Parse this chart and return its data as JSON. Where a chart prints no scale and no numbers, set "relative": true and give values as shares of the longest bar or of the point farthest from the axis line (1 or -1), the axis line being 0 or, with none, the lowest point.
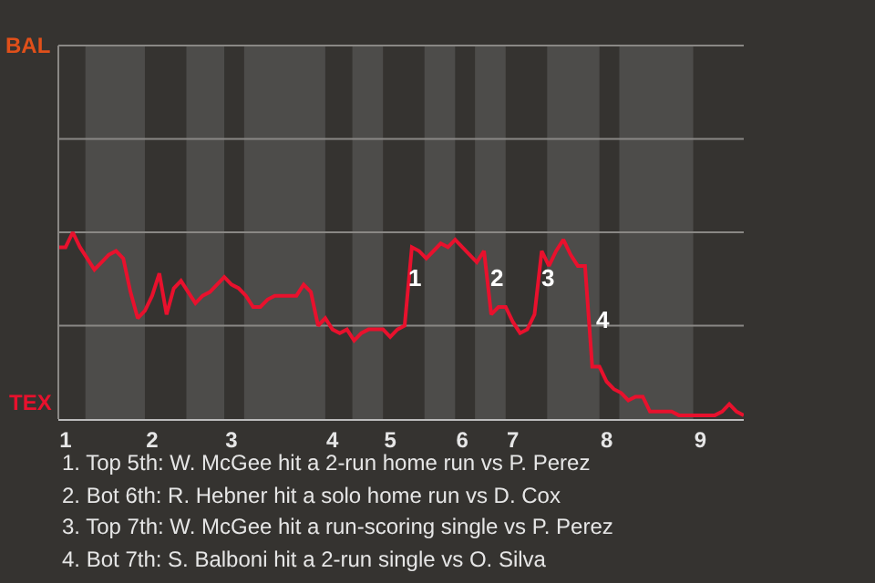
{
  "chart_data": {
    "type": "line",
    "relative": true,
    "categories": [
      null,
      "1",
      null,
      null,
      null,
      null,
      null,
      null,
      null,
      null,
      null,
      null,
      null,
      "2",
      null,
      null,
      null,
      null,
      null,
      null,
      null,
      null,
      null,
      null,
      "3",
      null,
      null,
      null,
      null,
      null,
      null,
      null,
      null,
      null,
      null,
      null,
      null,
      null,
      "4",
      null,
      null,
      null,
      null,
      null,
      null,
      null,
      "5",
      null,
      null,
      null,
      null,
      null,
      null,
      null,
      null,
      null,
      "6",
      null,
      null,
      null,
      null,
      null,
      null,
      "7",
      null,
      null,
      null,
      null,
      null,
      null,
      null,
      null,
      null,
      null,
      null,
      null,
      "8",
      null,
      null,
      null,
      null,
      null,
      null,
      null,
      null,
      null,
      null,
      null,
      null,
      "9",
      null,
      null,
      null,
      null,
      null,
      null
    ],
    "marker": "none",
    "line_style": "solid",
    "ref_lines": [
      {
        "axis": "y",
        "value": 0.5,
        "color": "#8a8885"
      },
      {
        "axis": "y",
        "value": 1,
        "color": "#8a8885"
      },
      {
        "axis": "y",
        "value": 1.5,
        "color": "#8a8885"
      }
    ],
    "series": [
      {
        "color": "#e8112d",
        "values": [
          0.92,
          0.92,
          1,
          0.92,
          0.86,
          0.8,
          0.84,
          0.88,
          0.9,
          0.86,
          0.68,
          0.54,
          0.58,
          0.66,
          0.78,
          0.56,
          0.7,
          0.74,
          0.68,
          0.62,
          0.66,
          0.68,
          0.72,
          0.76,
          0.72,
          0.7,
          0.66,
          0.6,
          0.6,
          0.64,
          0.66,
          0.66,
          0.66,
          0.66,
          0.72,
          0.68,
          0.5,
          0.54,
          0.48,
          0.46,
          0.48,
          0.42,
          0.46,
          0.48,
          0.48,
          0.48,
          0.44,
          0.48,
          0.5,
          0.92,
          0.9,
          0.86,
          0.9,
          0.94,
          0.92,
          0.96,
          0.92,
          0.88,
          0.84,
          0.9,
          0.56,
          0.6,
          0.6,
          0.52,
          0.46,
          0.48,
          0.56,
          0.9,
          0.82,
          0.9,
          0.96,
          0.88,
          0.82,
          0.82,
          0.28,
          0.28,
          0.2,
          0.16,
          0.14,
          0.1,
          0.12,
          0.12,
          0.04,
          0.04,
          0.04,
          0.04,
          0.02,
          0.02,
          0.02,
          0.02,
          0.02,
          0.02,
          0.04,
          0.08,
          0.04,
          0.02
        ]
      }
    ],
    "annotations": [
      "BAL",
      "TEX",
      "1",
      "2",
      "3",
      "4",
      "1. Top 5th: W. McGee hit a 2-run home run vs P. Perez",
      "2. Bot 6th: R. Hebner hit a solo home run vs D. Cox",
      "3. Top 7th: W. McGee hit a run-scoring single vs P. Perez",
      "4. Bot 7th: S. Balboni hit a 2-run single vs O. Silva"
    ]
  }
}
